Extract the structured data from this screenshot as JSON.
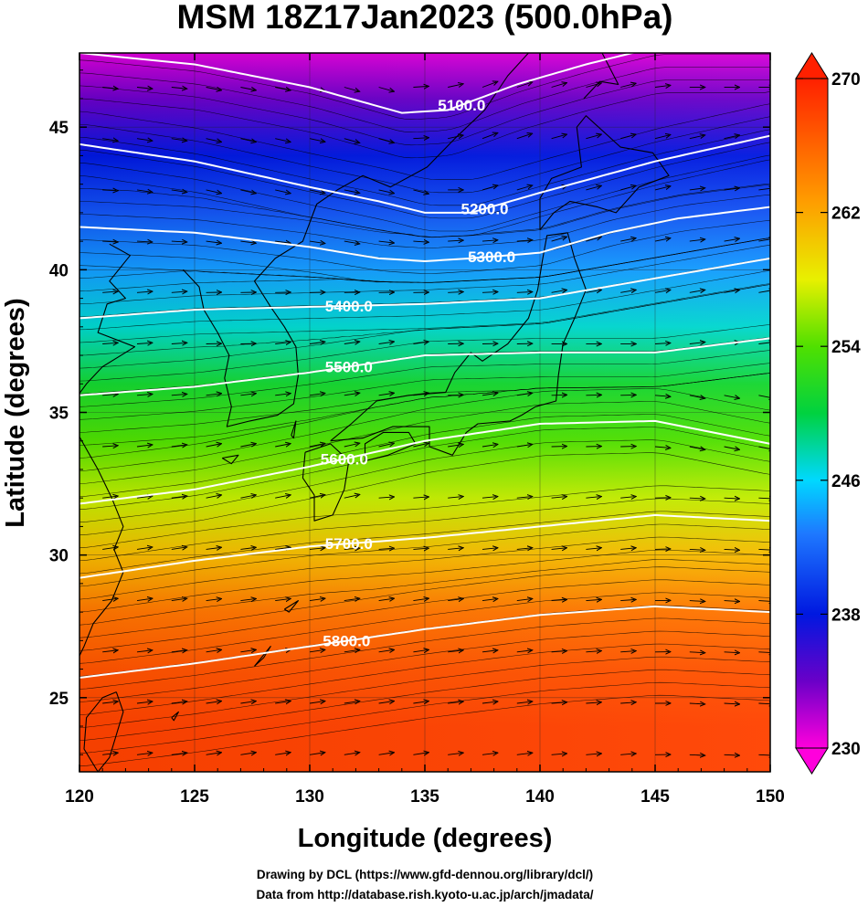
{
  "chart_data": {
    "type": "heatmap",
    "title": "MSM 18Z17Jan2023 (500.0hPa)",
    "xlabel": "Longitude (degrees)",
    "ylabel": "Latitude  (degrees)",
    "xlim": [
      120,
      150
    ],
    "ylim": [
      22.4,
      47.6
    ],
    "x_ticks": [
      120,
      125,
      130,
      135,
      140,
      145,
      150
    ],
    "y_ticks": [
      25,
      30,
      35,
      40,
      45
    ],
    "grid": true,
    "colorbar": {
      "range": [
        230,
        270
      ],
      "ticks": [
        230,
        238,
        246,
        254,
        262,
        270
      ],
      "placement": "right",
      "extend": "both"
    },
    "temperature_field_by_latitude": {
      "lat": [
        47.6,
        46,
        44,
        42,
        40,
        38,
        36,
        34,
        32,
        30,
        28,
        26,
        24,
        22.4
      ],
      "value": [
        231,
        234,
        238,
        241,
        244,
        247,
        251,
        254,
        257,
        261,
        265,
        267,
        268,
        268
      ]
    },
    "height_contours": [
      {
        "label": "5100.0",
        "points": [
          [
            120,
            47.6
          ],
          [
            125,
            47.2
          ],
          [
            130,
            46.4
          ],
          [
            134,
            45.5
          ],
          [
            136,
            45.6
          ],
          [
            139,
            46.5
          ],
          [
            142,
            47.2
          ],
          [
            145,
            47.8
          ]
        ]
      },
      {
        "label": "5200.0",
        "points": [
          [
            120,
            44.4
          ],
          [
            125,
            43.8
          ],
          [
            130,
            42.9
          ],
          [
            133,
            42.4
          ],
          [
            135,
            42.0
          ],
          [
            137,
            42.0
          ],
          [
            140,
            42.7
          ],
          [
            145,
            43.8
          ],
          [
            150,
            44.7
          ]
        ]
      },
      {
        "label": "5300.0",
        "points": [
          [
            120,
            41.5
          ],
          [
            125,
            41.3
          ],
          [
            130,
            40.8
          ],
          [
            133,
            40.4
          ],
          [
            135,
            40.3
          ],
          [
            137,
            40.4
          ],
          [
            140,
            40.6
          ],
          [
            143,
            41.3
          ],
          [
            146,
            41.8
          ],
          [
            150,
            42.2
          ]
        ]
      },
      {
        "label": "5400.0",
        "points": [
          [
            120,
            38.3
          ],
          [
            125,
            38.6
          ],
          [
            130,
            38.7
          ],
          [
            135,
            38.8
          ],
          [
            140,
            39.0
          ],
          [
            145,
            39.7
          ],
          [
            150,
            40.4
          ]
        ]
      },
      {
        "label": "5500.0",
        "points": [
          [
            120,
            35.6
          ],
          [
            125,
            35.9
          ],
          [
            130,
            36.4
          ],
          [
            135,
            37.0
          ],
          [
            140,
            37.1
          ],
          [
            145,
            37.1
          ],
          [
            150,
            37.6
          ]
        ]
      },
      {
        "label": "5600.0",
        "points": [
          [
            120,
            31.8
          ],
          [
            125,
            32.3
          ],
          [
            130,
            33.1
          ],
          [
            135,
            34.0
          ],
          [
            140,
            34.6
          ],
          [
            145,
            34.7
          ],
          [
            150,
            33.9
          ]
        ]
      },
      {
        "label": "5700.0",
        "points": [
          [
            120,
            29.2
          ],
          [
            125,
            29.8
          ],
          [
            130,
            30.3
          ],
          [
            135,
            30.6
          ],
          [
            140,
            31.0
          ],
          [
            145,
            31.4
          ],
          [
            150,
            31.2
          ]
        ]
      },
      {
        "label": "5800.0",
        "points": [
          [
            120,
            25.7
          ],
          [
            125,
            26.2
          ],
          [
            130,
            26.8
          ],
          [
            135,
            27.4
          ],
          [
            140,
            27.9
          ],
          [
            145,
            28.2
          ],
          [
            150,
            28.0
          ]
        ]
      }
    ]
  },
  "credits": {
    "line1": "Drawing by DCL (https://www.gfd-dennou.org/library/dcl/)",
    "line2": "Data from http://database.rish.kyoto-u.ac.jp/arch/jmadata/"
  }
}
